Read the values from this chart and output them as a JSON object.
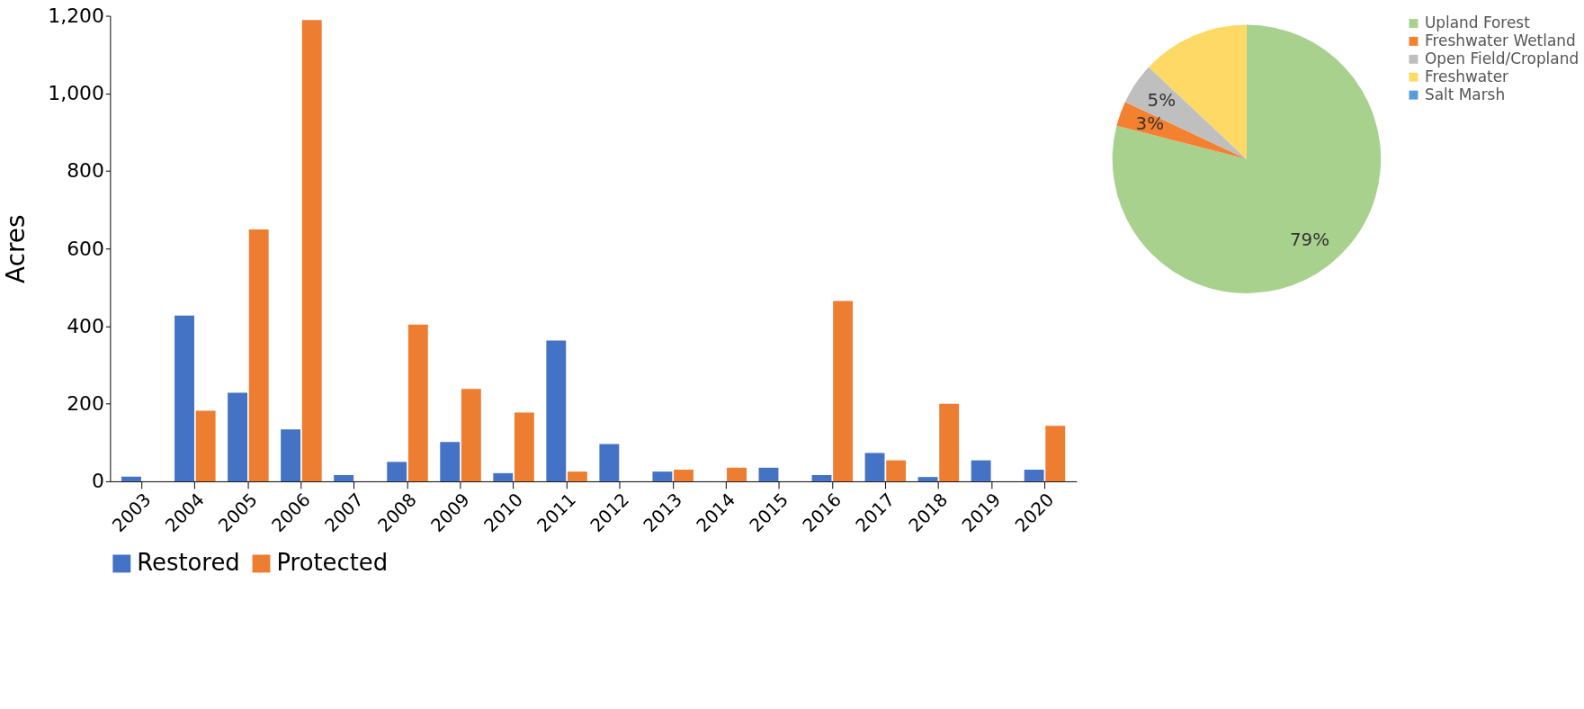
{
  "chart_data": [
    {
      "type": "bar",
      "ylabel": "Acres",
      "categories": [
        "2003",
        "2004",
        "2005",
        "2006",
        "2007",
        "2008",
        "2009",
        "2010",
        "2011",
        "2012",
        "2013",
        "2014",
        "2015",
        "2016",
        "2017",
        "2018",
        "2019",
        "2020"
      ],
      "series": [
        {
          "name": "Restored",
          "color": "#4472c4",
          "values": [
            12,
            427,
            228,
            134,
            16,
            50,
            101,
            21,
            363,
            96,
            25,
            0,
            35,
            16,
            73,
            11,
            54,
            30
          ]
        },
        {
          "name": "Protected",
          "color": "#ed7d31",
          "values": [
            0,
            182,
            649,
            1189,
            0,
            404,
            238,
            177,
            25,
            0,
            30,
            35,
            0,
            465,
            54,
            200,
            0,
            143
          ]
        }
      ],
      "ylim": [
        0,
        1200
      ],
      "yticks": [
        {
          "value": 0,
          "label": "0"
        },
        {
          "value": 200,
          "label": "200"
        },
        {
          "value": 400,
          "label": "400"
        },
        {
          "value": 600,
          "label": "600"
        },
        {
          "value": 800,
          "label": "800"
        },
        {
          "value": 1000,
          "label": "1,000"
        },
        {
          "value": 1200,
          "label": "1,200"
        }
      ],
      "grid": false,
      "legend": "bottom"
    },
    {
      "type": "pie",
      "categories": [
        "Upland Forest",
        "Freshwater Wetland",
        "Open Field/Cropland",
        "Freshwater",
        "Salt Marsh"
      ],
      "values": [
        79,
        3,
        5,
        13,
        0
      ],
      "colors": [
        "#a9d18e",
        "#f4812f",
        "#bfbfbf",
        "#ffd966",
        "#5b9bd5"
      ],
      "value_labels": [
        "79%",
        "3%",
        "5%",
        null,
        null
      ],
      "legend": "right"
    }
  ]
}
